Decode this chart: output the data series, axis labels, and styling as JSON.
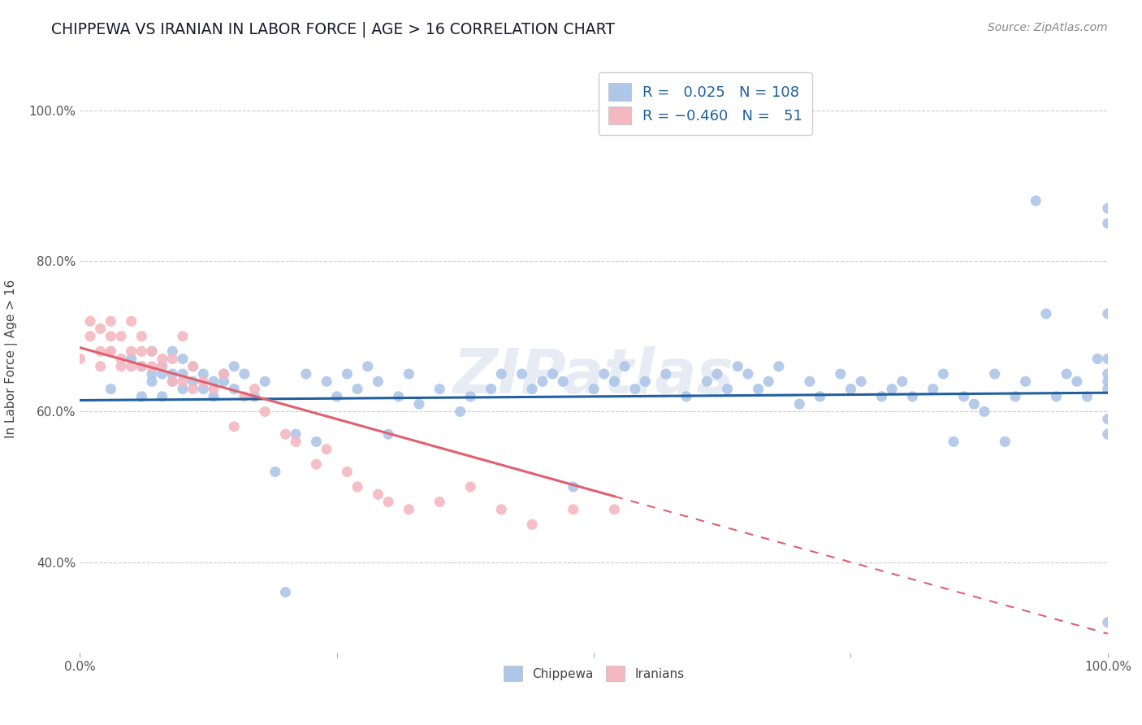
{
  "title": "CHIPPEWA VS IRANIAN IN LABOR FORCE | AGE > 16 CORRELATION CHART",
  "source_text": "Source: ZipAtlas.com",
  "ylabel": "In Labor Force | Age > 16",
  "xlim": [
    0.0,
    1.0
  ],
  "ylim": [
    0.28,
    1.06
  ],
  "chippewa_R": 0.025,
  "chippewa_N": 108,
  "iranian_R": -0.46,
  "iranian_N": 51,
  "background_color": "#ffffff",
  "grid_color": "#cccccc",
  "chippewa_color": "#aec6e8",
  "iranian_color": "#f4b8c1",
  "chippewa_line_color": "#2060a0",
  "iranian_line_color": "#e06070",
  "watermark": "ZIPatlas",
  "chippewa_x": [
    0.03,
    0.05,
    0.06,
    0.06,
    0.07,
    0.07,
    0.07,
    0.08,
    0.08,
    0.08,
    0.09,
    0.09,
    0.09,
    0.1,
    0.1,
    0.1,
    0.11,
    0.11,
    0.12,
    0.12,
    0.13,
    0.13,
    0.14,
    0.14,
    0.15,
    0.15,
    0.16,
    0.17,
    0.18,
    0.19,
    0.2,
    0.21,
    0.22,
    0.23,
    0.24,
    0.25,
    0.26,
    0.27,
    0.28,
    0.29,
    0.3,
    0.31,
    0.32,
    0.33,
    0.35,
    0.37,
    0.38,
    0.4,
    0.41,
    0.43,
    0.44,
    0.45,
    0.46,
    0.47,
    0.48,
    0.5,
    0.51,
    0.52,
    0.53,
    0.54,
    0.55,
    0.57,
    0.59,
    0.61,
    0.62,
    0.63,
    0.64,
    0.65,
    0.66,
    0.67,
    0.68,
    0.7,
    0.71,
    0.72,
    0.74,
    0.75,
    0.76,
    0.78,
    0.79,
    0.8,
    0.81,
    0.83,
    0.84,
    0.85,
    0.86,
    0.87,
    0.88,
    0.89,
    0.9,
    0.91,
    0.92,
    0.93,
    0.94,
    0.95,
    0.96,
    0.97,
    0.98,
    0.99,
    1.0,
    1.0,
    1.0,
    1.0,
    1.0,
    1.0,
    1.0,
    1.0,
    1.0,
    1.0
  ],
  "chippewa_y": [
    0.63,
    0.67,
    0.66,
    0.62,
    0.65,
    0.68,
    0.64,
    0.66,
    0.65,
    0.62,
    0.65,
    0.64,
    0.68,
    0.65,
    0.67,
    0.63,
    0.66,
    0.64,
    0.65,
    0.63,
    0.64,
    0.62,
    0.65,
    0.64,
    0.66,
    0.63,
    0.65,
    0.62,
    0.64,
    0.52,
    0.36,
    0.57,
    0.65,
    0.56,
    0.64,
    0.62,
    0.65,
    0.63,
    0.66,
    0.64,
    0.57,
    0.62,
    0.65,
    0.61,
    0.63,
    0.6,
    0.62,
    0.63,
    0.65,
    0.65,
    0.63,
    0.64,
    0.65,
    0.64,
    0.5,
    0.63,
    0.65,
    0.64,
    0.66,
    0.63,
    0.64,
    0.65,
    0.62,
    0.64,
    0.65,
    0.63,
    0.66,
    0.65,
    0.63,
    0.64,
    0.66,
    0.61,
    0.64,
    0.62,
    0.65,
    0.63,
    0.64,
    0.62,
    0.63,
    0.64,
    0.62,
    0.63,
    0.65,
    0.56,
    0.62,
    0.61,
    0.6,
    0.65,
    0.56,
    0.62,
    0.64,
    0.88,
    0.73,
    0.62,
    0.65,
    0.64,
    0.62,
    0.67,
    0.32,
    0.59,
    0.57,
    0.64,
    0.63,
    0.85,
    0.73,
    0.87,
    0.67,
    0.65
  ],
  "iranian_x": [
    0.0,
    0.01,
    0.01,
    0.02,
    0.02,
    0.02,
    0.03,
    0.03,
    0.03,
    0.03,
    0.04,
    0.04,
    0.04,
    0.05,
    0.05,
    0.05,
    0.06,
    0.06,
    0.06,
    0.07,
    0.07,
    0.08,
    0.08,
    0.09,
    0.09,
    0.1,
    0.1,
    0.11,
    0.11,
    0.12,
    0.13,
    0.14,
    0.15,
    0.16,
    0.17,
    0.18,
    0.2,
    0.21,
    0.23,
    0.24,
    0.26,
    0.27,
    0.29,
    0.3,
    0.32,
    0.35,
    0.38,
    0.41,
    0.44,
    0.48,
    0.52
  ],
  "iranian_y": [
    0.67,
    0.7,
    0.72,
    0.68,
    0.66,
    0.71,
    0.68,
    0.7,
    0.72,
    0.68,
    0.66,
    0.7,
    0.67,
    0.68,
    0.66,
    0.72,
    0.66,
    0.7,
    0.68,
    0.66,
    0.68,
    0.67,
    0.66,
    0.64,
    0.67,
    0.64,
    0.7,
    0.63,
    0.66,
    0.64,
    0.63,
    0.65,
    0.58,
    0.62,
    0.63,
    0.6,
    0.57,
    0.56,
    0.53,
    0.55,
    0.52,
    0.5,
    0.49,
    0.48,
    0.47,
    0.48,
    0.5,
    0.47,
    0.45,
    0.47,
    0.47
  ]
}
